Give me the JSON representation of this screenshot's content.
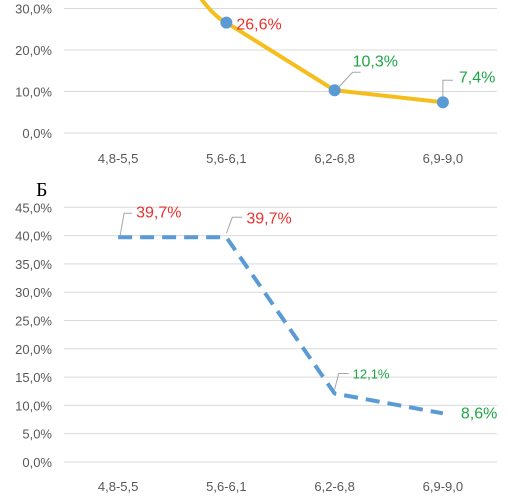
{
  "chart_data": [
    {
      "type": "line",
      "title": "",
      "categories": [
        "4,8-5,5",
        "5,6-6,1",
        "6,2-6,8",
        "6,9-9,0"
      ],
      "yticks": [
        "0,0%",
        "10,0%",
        "20,0%",
        "30,0%"
      ],
      "ylim": [
        0,
        33
      ],
      "series": [
        {
          "values": [
            null,
            26.6,
            10.3,
            7.4
          ],
          "labels": [
            "",
            "26,6%",
            "10,3%",
            "7,4%"
          ],
          "color": "#F5BE1D",
          "marker_color": "#5B9BD5",
          "label_colors": [
            "",
            "#E8322F",
            "#1DA546",
            "#1DA546"
          ],
          "entry_y": 40.0
        }
      ],
      "grid": true
    },
    {
      "type": "line",
      "panel_label": "Б",
      "categories": [
        "4,8-5,5",
        "5,6-6,1",
        "6,2-6,8",
        "6,9-9,0"
      ],
      "yticks": [
        "0,0%",
        "5,0%",
        "10,0%",
        "15,0%",
        "20,0%",
        "25,0%",
        "30,0%",
        "35,0%",
        "40,0%",
        "45,0%"
      ],
      "ylim": [
        0,
        45
      ],
      "series": [
        {
          "values": [
            39.7,
            39.7,
            12.1,
            8.6
          ],
          "labels": [
            "39,7%",
            "39,7%",
            "12,1%",
            "8,6%"
          ],
          "color": "#5B9BD5",
          "dashed": true,
          "label_colors": [
            "#E8322F",
            "#E8322F",
            "#1DA546",
            "#1DA546"
          ]
        }
      ],
      "grid": true
    }
  ]
}
